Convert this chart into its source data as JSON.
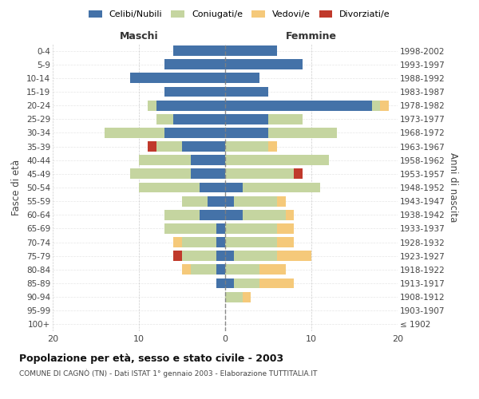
{
  "age_groups": [
    "100+",
    "95-99",
    "90-94",
    "85-89",
    "80-84",
    "75-79",
    "70-74",
    "65-69",
    "60-64",
    "55-59",
    "50-54",
    "45-49",
    "40-44",
    "35-39",
    "30-34",
    "25-29",
    "20-24",
    "15-19",
    "10-14",
    "5-9",
    "0-4"
  ],
  "birth_years": [
    "≤ 1902",
    "1903-1907",
    "1908-1912",
    "1913-1917",
    "1918-1922",
    "1923-1927",
    "1928-1932",
    "1933-1937",
    "1938-1942",
    "1943-1947",
    "1948-1952",
    "1953-1957",
    "1958-1962",
    "1963-1967",
    "1968-1972",
    "1973-1977",
    "1978-1982",
    "1983-1987",
    "1988-1992",
    "1993-1997",
    "1998-2002"
  ],
  "maschi": {
    "celibi": [
      0,
      0,
      0,
      1,
      1,
      1,
      1,
      1,
      3,
      2,
      3,
      4,
      4,
      5,
      7,
      6,
      8,
      7,
      11,
      7,
      6
    ],
    "coniugati": [
      0,
      0,
      0,
      0,
      3,
      4,
      4,
      6,
      4,
      3,
      7,
      7,
      6,
      3,
      7,
      2,
      1,
      0,
      0,
      0,
      0
    ],
    "vedovi": [
      0,
      0,
      0,
      0,
      1,
      0,
      1,
      0,
      0,
      0,
      0,
      0,
      0,
      0,
      0,
      0,
      0,
      0,
      0,
      0,
      0
    ],
    "divorziati": [
      0,
      0,
      0,
      0,
      0,
      1,
      0,
      0,
      0,
      0,
      0,
      0,
      0,
      1,
      0,
      0,
      0,
      0,
      0,
      0,
      0
    ]
  },
  "femmine": {
    "nubili": [
      0,
      0,
      0,
      1,
      0,
      1,
      0,
      0,
      2,
      1,
      2,
      0,
      0,
      0,
      5,
      5,
      17,
      5,
      4,
      9,
      6
    ],
    "coniugate": [
      0,
      0,
      2,
      3,
      4,
      5,
      6,
      6,
      5,
      5,
      9,
      8,
      12,
      5,
      8,
      4,
      1,
      0,
      0,
      0,
      0
    ],
    "vedove": [
      0,
      0,
      1,
      4,
      3,
      4,
      2,
      2,
      1,
      1,
      0,
      0,
      0,
      1,
      0,
      0,
      1,
      0,
      0,
      0,
      0
    ],
    "divorziate": [
      0,
      0,
      0,
      0,
      0,
      0,
      0,
      0,
      0,
      0,
      0,
      1,
      0,
      0,
      0,
      0,
      0,
      0,
      0,
      0,
      0
    ]
  },
  "colors": {
    "celibi": "#4472a8",
    "coniugati": "#c5d5a0",
    "vedovi": "#f5c97a",
    "divorziati": "#c0392b"
  },
  "xlim": 20,
  "title": "Popolazione per età, sesso e stato civile - 2003",
  "subtitle": "COMUNE DI CAGNÒ (TN) - Dati ISTAT 1° gennaio 2003 - Elaborazione TUTTITALIA.IT",
  "ylabel_left": "Fasce di età",
  "ylabel_right": "Anni di nascita",
  "xlabel_left": "Maschi",
  "xlabel_right": "Femmine",
  "legend_labels": [
    "Celibi/Nubili",
    "Coniugati/e",
    "Vedovi/e",
    "Divorziati/e"
  ],
  "figsize": [
    6.0,
    5.0
  ],
  "dpi": 100
}
